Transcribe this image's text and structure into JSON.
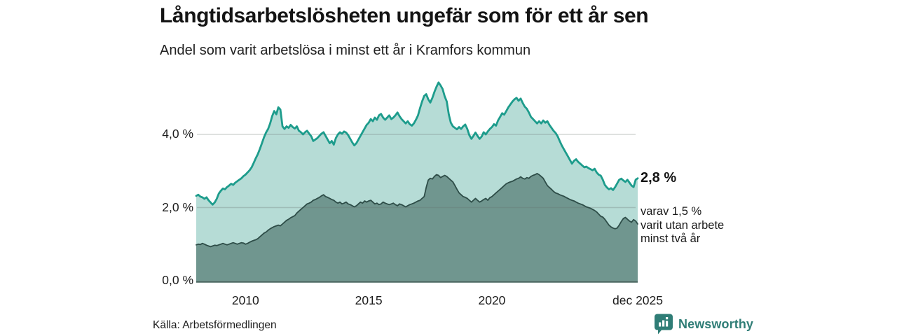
{
  "chart_data": {
    "type": "area",
    "title": "Långtidsarbetslösheten ungefär som för ett år sen",
    "subtitle": "Andel som varit arbetslösa i minst ett år i Kramfors kommun",
    "unit": "%",
    "frequency": "monthly",
    "x_start": "2008-01",
    "x_end": "2025-12",
    "ylim": [
      0,
      5.6
    ],
    "grid": "horizontal",
    "legend_position": "none",
    "yticks": [
      {
        "value": 4.0,
        "label": "4,0 %"
      },
      {
        "value": 2.0,
        "label": "2,0 %"
      },
      {
        "value": 0.0,
        "label": "0,0 %"
      }
    ],
    "xticks": [
      {
        "label": "2010",
        "month_index": 24
      },
      {
        "label": "2015",
        "month_index": 84
      },
      {
        "label": "2020",
        "month_index": 144
      },
      {
        "label": "dec 2025",
        "month_index": 215
      }
    ],
    "series": [
      {
        "name": "Andel som varit arbetslösa i minst ett år",
        "line_color": "#1d9c8c",
        "fill_color": "#b6dcd6",
        "line_width": 2.8,
        "end_value": 2.8,
        "values": [
          2.32,
          2.35,
          2.3,
          2.28,
          2.24,
          2.28,
          2.2,
          2.14,
          2.08,
          2.14,
          2.24,
          2.38,
          2.46,
          2.52,
          2.5,
          2.56,
          2.6,
          2.65,
          2.62,
          2.68,
          2.72,
          2.76,
          2.8,
          2.86,
          2.9,
          2.96,
          3.02,
          3.1,
          3.22,
          3.35,
          3.46,
          3.6,
          3.76,
          3.92,
          4.05,
          4.15,
          4.3,
          4.5,
          4.64,
          4.55,
          4.74,
          4.68,
          4.22,
          4.15,
          4.22,
          4.18,
          4.26,
          4.2,
          4.16,
          4.22,
          4.1,
          4.06,
          4.0,
          4.06,
          4.1,
          4.02,
          3.95,
          3.82,
          3.86,
          3.9,
          3.96,
          4.02,
          4.06,
          3.96,
          3.86,
          3.76,
          3.82,
          3.72,
          3.9,
          4.0,
          4.06,
          4.02,
          4.08,
          4.05,
          3.98,
          3.88,
          3.78,
          3.7,
          3.76,
          3.86,
          3.96,
          4.06,
          4.16,
          4.26,
          4.32,
          4.42,
          4.36,
          4.46,
          4.4,
          4.52,
          4.56,
          4.46,
          4.4,
          4.46,
          4.52,
          4.42,
          4.46,
          4.52,
          4.6,
          4.5,
          4.42,
          4.36,
          4.3,
          4.36,
          4.28,
          4.24,
          4.3,
          4.4,
          4.52,
          4.72,
          4.9,
          5.05,
          5.1,
          4.96,
          4.87,
          5.0,
          5.16,
          5.3,
          5.42,
          5.34,
          5.24,
          5.04,
          4.9,
          4.55,
          4.32,
          4.22,
          4.18,
          4.14,
          4.2,
          4.15,
          4.22,
          4.27,
          4.15,
          3.98,
          3.88,
          3.96,
          4.05,
          3.96,
          3.88,
          3.94,
          4.06,
          4.0,
          4.08,
          4.15,
          4.2,
          4.28,
          4.24,
          4.38,
          4.48,
          4.58,
          4.54,
          4.64,
          4.74,
          4.82,
          4.9,
          4.96,
          5.0,
          4.92,
          4.98,
          4.86,
          4.76,
          4.7,
          4.6,
          4.48,
          4.42,
          4.36,
          4.3,
          4.36,
          4.3,
          4.38,
          4.32,
          4.36,
          4.26,
          4.18,
          4.1,
          4.04,
          3.95,
          3.82,
          3.7,
          3.6,
          3.5,
          3.4,
          3.3,
          3.2,
          3.28,
          3.32,
          3.25,
          3.2,
          3.15,
          3.1,
          3.12,
          3.08,
          3.05,
          3.02,
          3.06,
          2.96,
          2.9,
          2.87,
          2.76,
          2.62,
          2.55,
          2.5,
          2.53,
          2.48,
          2.56,
          2.66,
          2.76,
          2.79,
          2.74,
          2.7,
          2.76,
          2.68,
          2.6,
          2.56,
          2.76,
          2.8
        ]
      },
      {
        "name": "varav varit utan arbete minst två år",
        "line_color": "#2e4d48",
        "fill_color": "#70968f",
        "line_width": 1.8,
        "end_value": 1.5,
        "values": [
          0.98,
          1.0,
          0.99,
          1.02,
          1.0,
          0.97,
          0.95,
          0.93,
          0.95,
          0.97,
          0.96,
          0.98,
          1.0,
          1.02,
          1.0,
          0.98,
          1.0,
          1.02,
          1.04,
          1.02,
          1.0,
          1.02,
          1.04,
          1.03,
          1.0,
          1.02,
          1.05,
          1.08,
          1.1,
          1.12,
          1.15,
          1.2,
          1.25,
          1.3,
          1.33,
          1.38,
          1.42,
          1.45,
          1.48,
          1.5,
          1.52,
          1.5,
          1.55,
          1.6,
          1.65,
          1.68,
          1.72,
          1.75,
          1.78,
          1.85,
          1.9,
          1.95,
          2.0,
          2.05,
          2.1,
          2.12,
          2.15,
          2.2,
          2.22,
          2.25,
          2.28,
          2.32,
          2.35,
          2.3,
          2.28,
          2.25,
          2.22,
          2.2,
          2.15,
          2.12,
          2.15,
          2.1,
          2.12,
          2.15,
          2.1,
          2.08,
          2.05,
          2.02,
          2.05,
          2.1,
          2.15,
          2.12,
          2.18,
          2.15,
          2.18,
          2.2,
          2.15,
          2.1,
          2.12,
          2.08,
          2.1,
          2.15,
          2.12,
          2.1,
          2.08,
          2.1,
          2.12,
          2.08,
          2.05,
          2.1,
          2.08,
          2.05,
          2.02,
          2.05,
          2.08,
          2.1,
          2.12,
          2.15,
          2.18,
          2.2,
          2.25,
          2.3,
          2.55,
          2.75,
          2.8,
          2.78,
          2.85,
          2.9,
          2.88,
          2.82,
          2.85,
          2.88,
          2.85,
          2.8,
          2.75,
          2.7,
          2.6,
          2.5,
          2.4,
          2.35,
          2.3,
          2.28,
          2.25,
          2.2,
          2.15,
          2.2,
          2.25,
          2.2,
          2.15,
          2.18,
          2.22,
          2.25,
          2.2,
          2.27,
          2.3,
          2.35,
          2.4,
          2.45,
          2.5,
          2.55,
          2.6,
          2.65,
          2.68,
          2.7,
          2.72,
          2.75,
          2.78,
          2.8,
          2.84,
          2.8,
          2.78,
          2.82,
          2.8,
          2.85,
          2.88,
          2.9,
          2.93,
          2.9,
          2.85,
          2.8,
          2.7,
          2.6,
          2.55,
          2.5,
          2.44,
          2.4,
          2.38,
          2.35,
          2.33,
          2.31,
          2.28,
          2.25,
          2.22,
          2.2,
          2.18,
          2.15,
          2.12,
          2.1,
          2.08,
          2.05,
          2.02,
          2.0,
          1.98,
          1.95,
          1.92,
          1.88,
          1.82,
          1.76,
          1.74,
          1.68,
          1.6,
          1.52,
          1.47,
          1.44,
          1.42,
          1.44,
          1.52,
          1.62,
          1.7,
          1.73,
          1.68,
          1.63,
          1.6,
          1.67,
          1.63,
          1.55
        ]
      }
    ],
    "end_labels": {
      "total": "2,8 %",
      "detail_lines": [
        "varav 1,5 %",
        "varit utan arbete",
        "minst två år"
      ]
    }
  },
  "footer": {
    "source": "Källa: Arbetsförmedlingen",
    "brand": "Newsworthy"
  },
  "colors": {
    "accent_teal": "#1d9c8c",
    "light_fill": "#b6dcd6",
    "dark_fill": "#70968f",
    "dark_line": "#2e4d48",
    "axis": "#47655f",
    "grid": "rgba(100,110,108,0.28)",
    "brand": "#2f7d76"
  }
}
